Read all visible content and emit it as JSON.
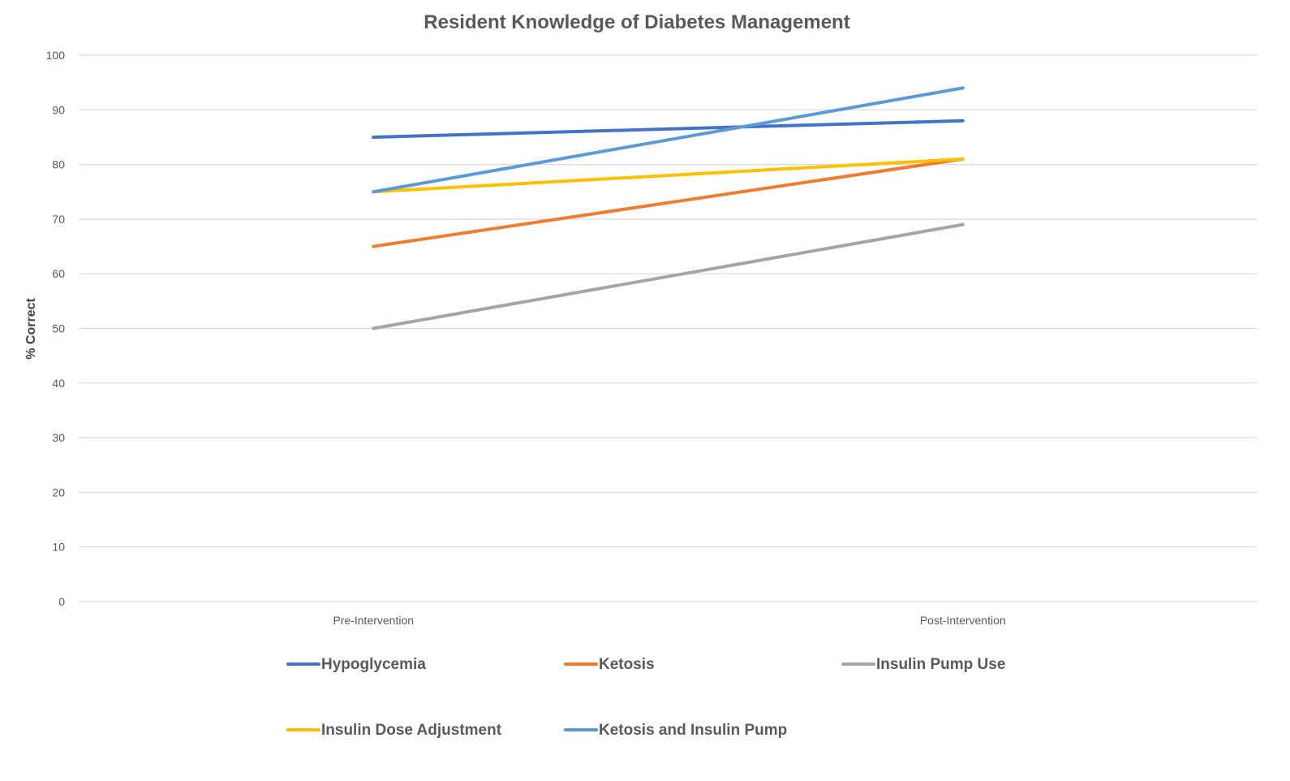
{
  "chart_data": {
    "type": "line",
    "title": "Resident Knowledge of Diabetes Management",
    "xlabel": "",
    "ylabel": "% Correct",
    "categories": [
      "Pre-Intervention",
      "Post-Intervention"
    ],
    "ylim": [
      0,
      100
    ],
    "yticks": [
      0,
      10,
      20,
      30,
      40,
      50,
      60,
      70,
      80,
      90,
      100
    ],
    "grid": true,
    "legend_position": "bottom",
    "series": [
      {
        "name": "Hypoglycemia",
        "color": "#4472C4",
        "values": [
          85,
          88
        ]
      },
      {
        "name": "Ketosis",
        "color": "#ED7D31",
        "values": [
          65,
          81
        ]
      },
      {
        "name": "Insulin Pump Use",
        "color": "#A5A5A5",
        "values": [
          50,
          69
        ]
      },
      {
        "name": "Insulin Dose Adjustment",
        "color": "#FFC000",
        "values": [
          75,
          81
        ]
      },
      {
        "name": "Ketosis and Insulin Pump",
        "color": "#5B9BD5",
        "values": [
          75,
          94
        ]
      }
    ]
  }
}
